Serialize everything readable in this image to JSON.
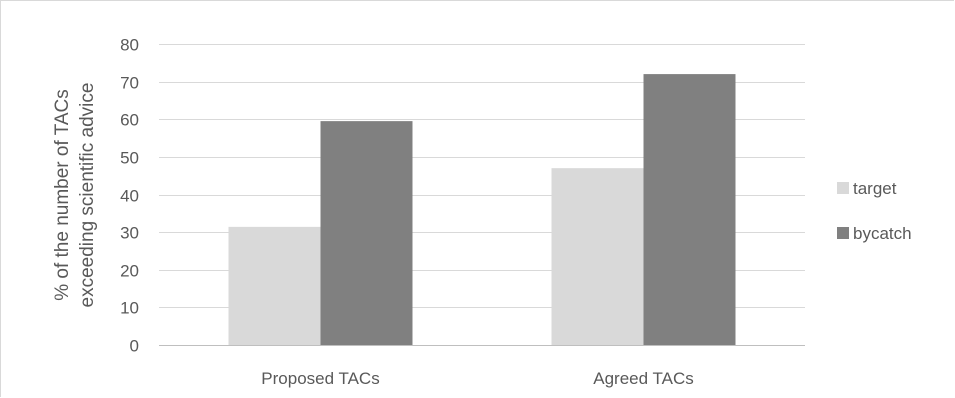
{
  "chart_data": {
    "type": "bar",
    "title": "",
    "xlabel": "",
    "ylabel_lines": [
      "% of the number of TACs",
      "exceeding scientific advice"
    ],
    "categories": [
      "Proposed TACs",
      "Agreed TACs"
    ],
    "series": [
      {
        "name": "target",
        "color": "#d9d9d9",
        "values": [
          31.4,
          47
        ]
      },
      {
        "name": "bycatch",
        "color": "#808080",
        "values": [
          59.5,
          72
        ]
      }
    ],
    "ylim": [
      0,
      80
    ],
    "yticks": [
      0,
      10,
      20,
      30,
      40,
      50,
      60,
      70,
      80
    ],
    "grid": true,
    "legend_position": "right"
  }
}
